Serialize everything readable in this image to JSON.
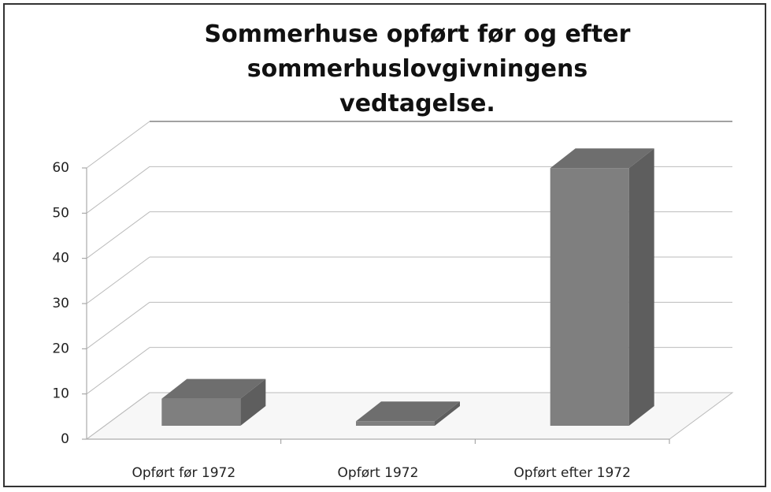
{
  "chart_data": {
    "type": "bar3d",
    "title": "Sommerhuse opført før og efter sommerhuslovgivningens vedtagelse.",
    "categories": [
      "Opført før 1972",
      "Opført 1972",
      "Opført efter 1972"
    ],
    "values": [
      6,
      1,
      57
    ],
    "color": "#7f7f7f",
    "ylim": [
      0,
      60
    ],
    "yticks": [
      0,
      10,
      20,
      30,
      40,
      50,
      60
    ],
    "grid": true
  }
}
